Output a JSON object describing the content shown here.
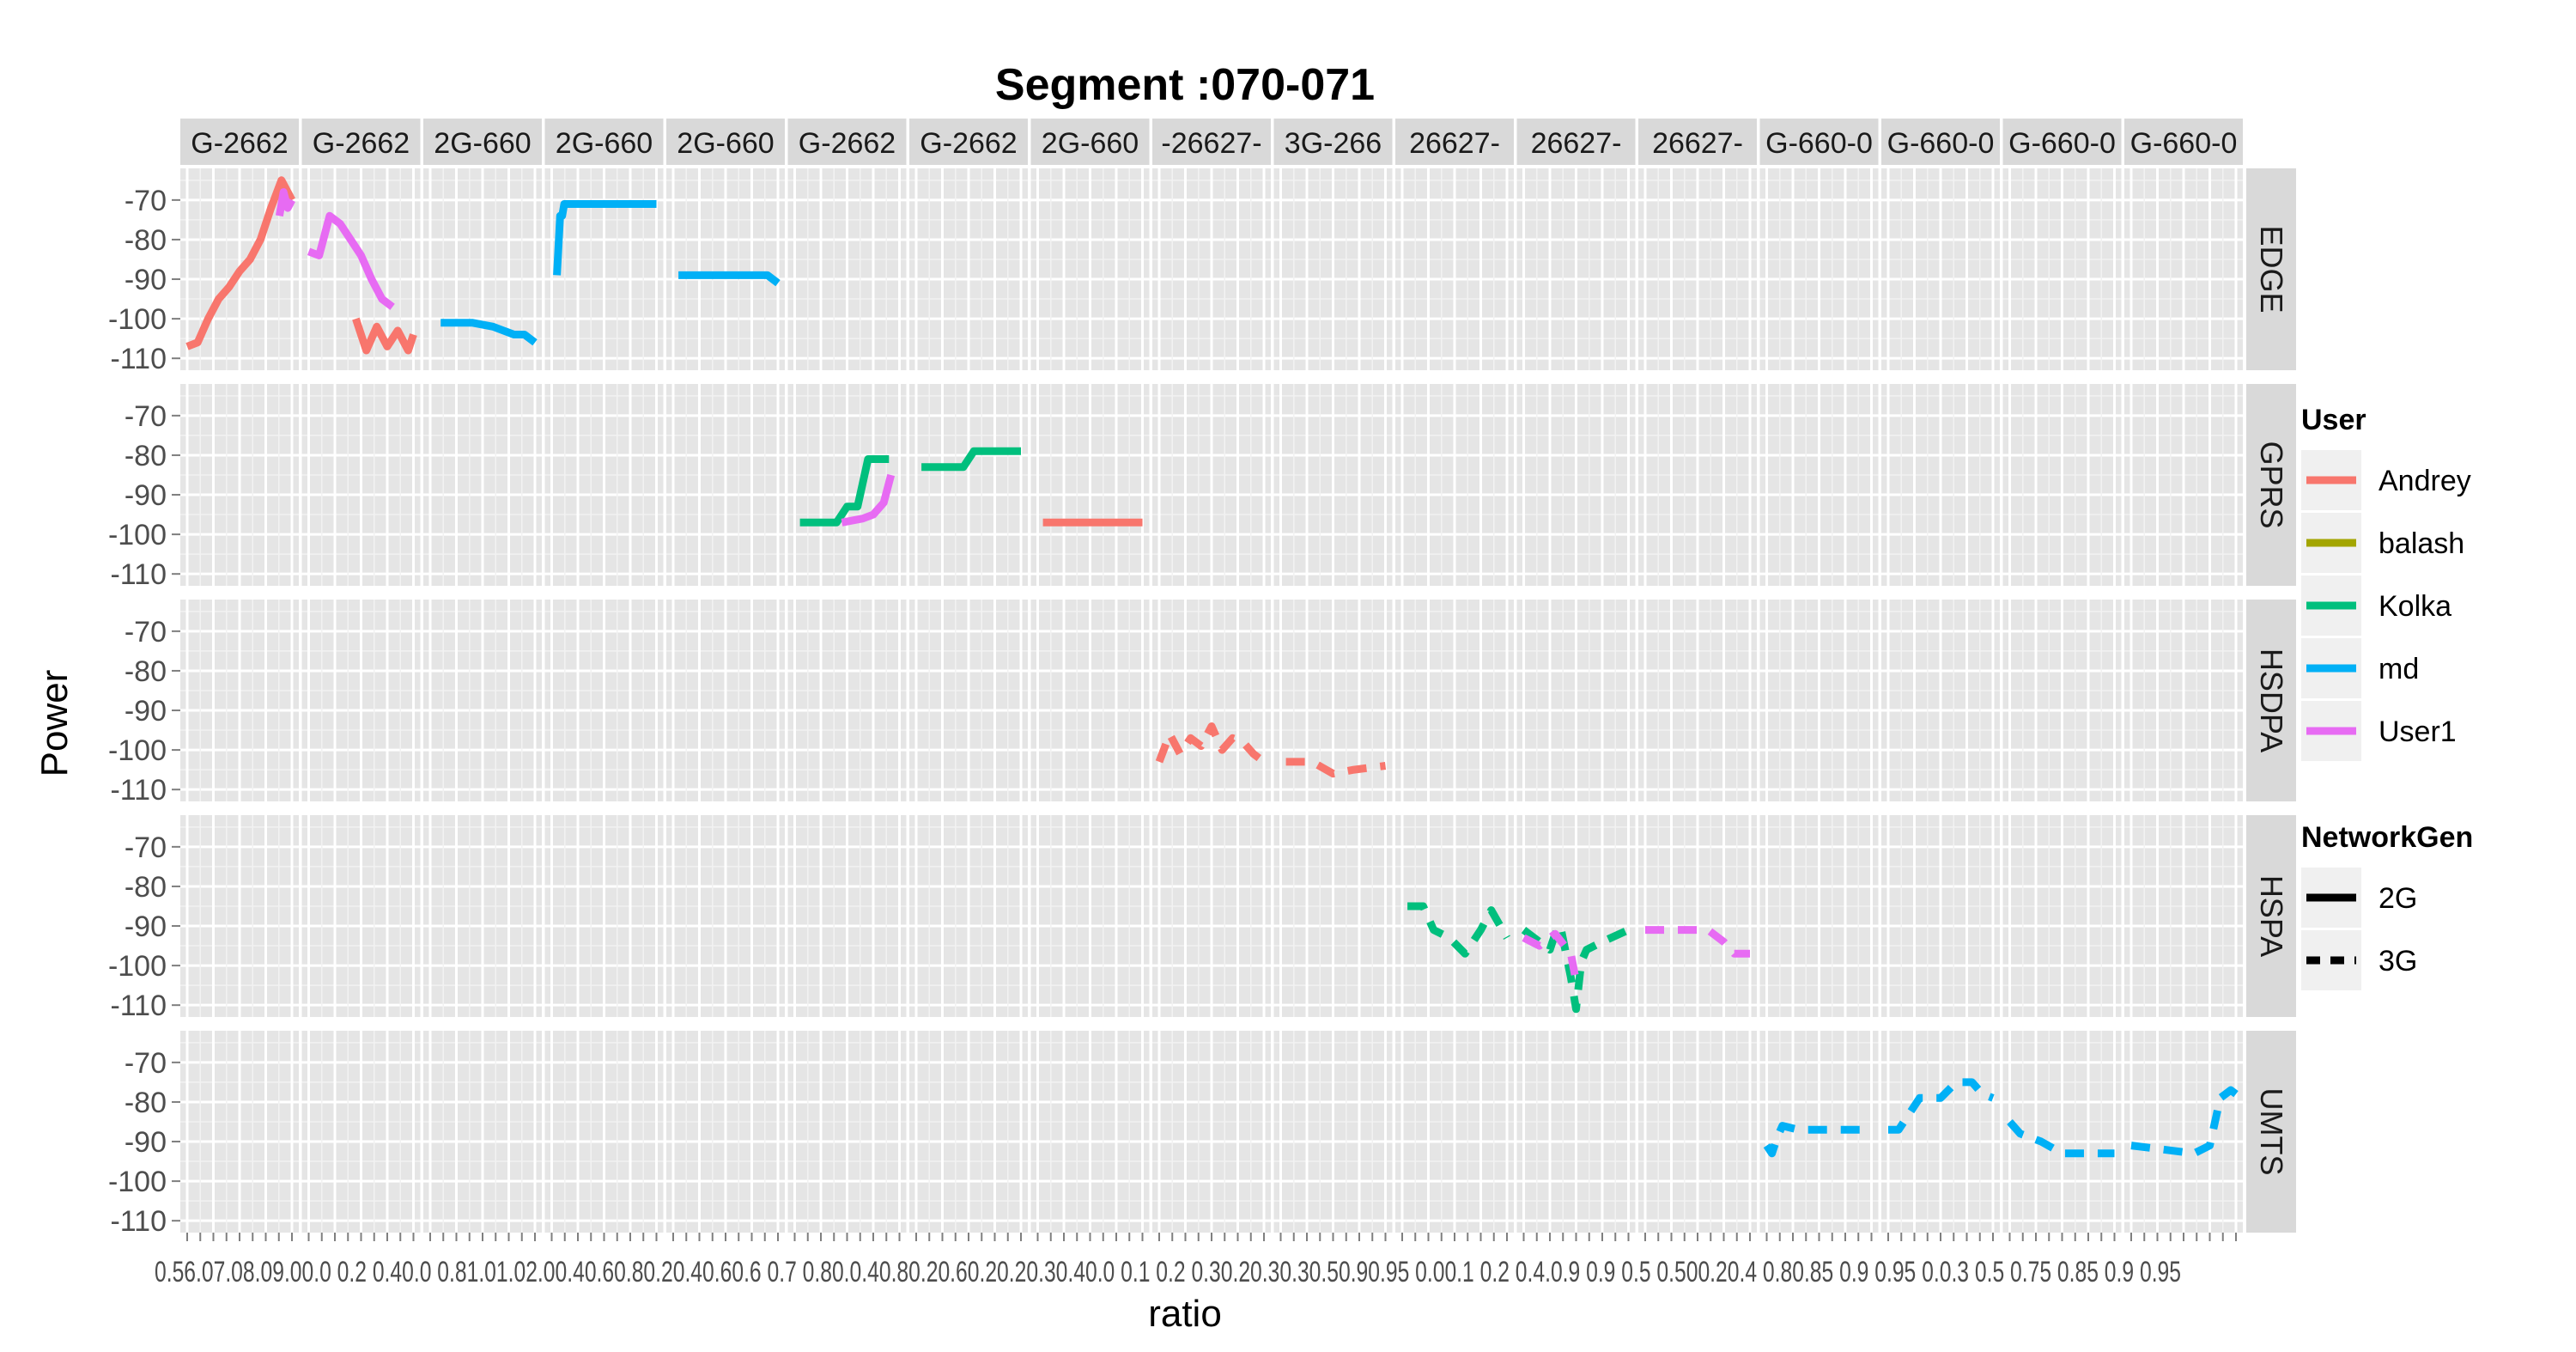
{
  "chart_data": {
    "type": "line",
    "title": "Segment :070-071",
    "xlabel": "ratio",
    "ylabel": "Power",
    "ylim": [
      -113,
      -62
    ],
    "yticks": [
      -70,
      -80,
      -90,
      -100,
      -110
    ],
    "grid": true,
    "legend_position": "right",
    "facet_columns": [
      "G-2662",
      "G-2662",
      "2G-660",
      "2G-660",
      "2G-660",
      "G-2662",
      "G-2662",
      "2G-660",
      "-26627-",
      "3G-266",
      "26627-",
      "26627-",
      "26627-",
      "G-660-0",
      "G-660-0",
      "G-660-0",
      "G-660-0"
    ],
    "facet_rows": [
      "EDGE",
      "GPRS",
      "HSDPA",
      "HSPA",
      "UMTS"
    ],
    "x_tick_labels": "0.56.07.08.09.00.0 0.2 0.40.0 0.81.01.02.00.40.60.80.20.40.60.6 0.7 0.80.0.40.80.20.60.20.20.30.40.0 0.1 0.2 0.30.20.30.30.50.90.95 0.00.1 0.2 0.4.0.9 0.9 0.5 0.500.20.4 0.80.85 0.9 0.95 0.0.3 0.5 0.75 0.85 0.9 0.95",
    "users": [
      {
        "name": "Andrey",
        "color": "#F8766D"
      },
      {
        "name": "balash",
        "color": "#A3A500"
      },
      {
        "name": "Kolka",
        "color": "#00BF7D"
      },
      {
        "name": "md",
        "color": "#00B0F6"
      },
      {
        "name": "User1",
        "color": "#E76BF3"
      }
    ],
    "network_gen": [
      {
        "name": "2G",
        "linetype": "solid"
      },
      {
        "name": "3G",
        "linetype": "dashed"
      }
    ],
    "series": [
      {
        "row": "EDGE",
        "col": 0,
        "user": "Andrey",
        "gen": "2G",
        "x": [
          0,
          0.1,
          0.2,
          0.3,
          0.4,
          0.5,
          0.6,
          0.7,
          0.8,
          0.9,
          1.0
        ],
        "y": [
          -107,
          -106,
          -100,
          -95,
          -92,
          -88,
          -85,
          -80,
          -72,
          -65,
          -70
        ]
      },
      {
        "row": "EDGE",
        "col": 0,
        "user": "User1",
        "gen": "2G",
        "x": [
          0.88,
          0.92,
          0.96,
          1.0
        ],
        "y": [
          -74,
          -68,
          -72,
          -70
        ]
      },
      {
        "row": "EDGE",
        "col": 1,
        "user": "User1",
        "gen": "2G",
        "x": [
          0,
          0.1,
          0.2,
          0.3,
          0.4,
          0.5,
          0.6,
          0.7,
          0.8
        ],
        "y": [
          -83,
          -84,
          -74,
          -76,
          -80,
          -84,
          -90,
          -95,
          -97
        ]
      },
      {
        "row": "EDGE",
        "col": 1,
        "user": "Andrey",
        "gen": "2G",
        "x": [
          0.45,
          0.55,
          0.65,
          0.75,
          0.85,
          0.95,
          1.0
        ],
        "y": [
          -100,
          -108,
          -102,
          -107,
          -103,
          -108,
          -104
        ]
      },
      {
        "row": "EDGE",
        "col": 2,
        "user": "md",
        "gen": "2G",
        "x": [
          0.1,
          0.4,
          0.6,
          0.7,
          0.8,
          0.9,
          1.0
        ],
        "y": [
          -101,
          -101,
          -102,
          -103,
          -104,
          -104,
          -106
        ]
      },
      {
        "row": "EDGE",
        "col": 3,
        "user": "md",
        "gen": "2G",
        "x": [
          0.05,
          0.08,
          0.1,
          0.12,
          0.15,
          1.0
        ],
        "y": [
          -89,
          -74,
          -74,
          -71,
          -71,
          -71
        ]
      },
      {
        "row": "EDGE",
        "col": 4,
        "user": "md",
        "gen": "2G",
        "x": [
          0.05,
          0.9,
          1.0
        ],
        "y": [
          -89,
          -89,
          -91
        ]
      },
      {
        "row": "GPRS",
        "col": 5,
        "user": "Kolka",
        "gen": "2G",
        "x": [
          0.05,
          0.4,
          0.5,
          0.6,
          0.7,
          0.8,
          0.9
        ],
        "y": [
          -97,
          -97,
          -93,
          -93,
          -81,
          -81,
          -81
        ]
      },
      {
        "row": "GPRS",
        "col": 5,
        "user": "User1",
        "gen": "2G",
        "x": [
          0.45,
          0.65,
          0.75,
          0.85,
          0.92
        ],
        "y": [
          -97,
          -96,
          -95,
          -92,
          -85
        ]
      },
      {
        "row": "GPRS",
        "col": 6,
        "user": "Kolka",
        "gen": "2G",
        "x": [
          0.05,
          0.45,
          0.55,
          1.0
        ],
        "y": [
          -83,
          -83,
          -79,
          -79
        ]
      },
      {
        "row": "GPRS",
        "col": 7,
        "user": "Andrey",
        "gen": "2G",
        "x": [
          0.05,
          1.0
        ],
        "y": [
          -97,
          -97
        ]
      },
      {
        "row": "HSDPA",
        "col": 8,
        "user": "Andrey",
        "gen": "3G",
        "x": [
          0,
          0.1,
          0.2,
          0.3,
          0.4,
          0.5,
          0.6,
          0.7,
          0.8,
          0.9,
          1.0
        ],
        "y": [
          -103,
          -96,
          -101,
          -97,
          -99,
          -94,
          -100,
          -97,
          -98,
          -101,
          -103
        ]
      },
      {
        "row": "HSDPA",
        "col": 9,
        "user": "Andrey",
        "gen": "3G",
        "x": [
          0.05,
          0.3,
          0.5,
          0.7,
          1.0
        ],
        "y": [
          -103,
          -103,
          -106,
          -105,
          -104
        ]
      },
      {
        "row": "HSPA",
        "col": 10,
        "user": "Kolka",
        "gen": "3G",
        "x": [
          0.05,
          0.2,
          0.3,
          0.45,
          0.6,
          0.75,
          0.85,
          1.0
        ],
        "y": [
          -85,
          -85,
          -91,
          -93,
          -97,
          -91,
          -86,
          -93
        ]
      },
      {
        "row": "HSPA",
        "col": 11,
        "user": "Kolka",
        "gen": "3G",
        "x": [
          0.0,
          0.1,
          0.25,
          0.3,
          0.35,
          0.45,
          0.5,
          0.55,
          0.6,
          0.75,
          1.0
        ],
        "y": [
          -91,
          -93,
          -96,
          -92,
          -90,
          -103,
          -111,
          -99,
          -96,
          -94,
          -91
        ]
      },
      {
        "row": "HSPA",
        "col": 11,
        "user": "User1",
        "gen": "3G",
        "x": [
          0.0,
          0.15,
          0.3,
          0.45,
          0.5
        ],
        "y": [
          -93,
          -95,
          -92,
          -97,
          -104
        ]
      },
      {
        "row": "HSPA",
        "col": 12,
        "user": "User1",
        "gen": "3G",
        "x": [
          0.0,
          0.3,
          0.6,
          0.75,
          0.85,
          1.0
        ],
        "y": [
          -91,
          -91,
          -91,
          -94,
          -97,
          -97
        ]
      },
      {
        "row": "UMTS",
        "col": 13,
        "user": "md",
        "gen": "3G",
        "x": [
          0.0,
          0.05,
          0.1,
          0.15,
          0.3,
          0.6,
          1.0
        ],
        "y": [
          -91,
          -93,
          -89,
          -86,
          -87,
          -87,
          -87
        ]
      },
      {
        "row": "UMTS",
        "col": 14,
        "user": "md",
        "gen": "3G",
        "x": [
          0.0,
          0.1,
          0.3,
          0.5,
          0.65,
          0.8,
          0.9,
          1.0
        ],
        "y": [
          -87,
          -87,
          -79,
          -79,
          -75,
          -75,
          -78,
          -79
        ]
      },
      {
        "row": "UMTS",
        "col": 15,
        "user": "md",
        "gen": "3G",
        "x": [
          0.0,
          0.1,
          0.3,
          0.5,
          0.7,
          1.0
        ],
        "y": [
          -85,
          -88,
          -90,
          -93,
          -93,
          -93
        ]
      },
      {
        "row": "UMTS",
        "col": 16,
        "user": "md",
        "gen": "3G",
        "x": [
          0.0,
          0.3,
          0.6,
          0.75,
          0.85,
          0.95,
          1.0
        ],
        "y": [
          -91,
          -92,
          -93,
          -91,
          -79,
          -77,
          -78
        ]
      }
    ]
  }
}
